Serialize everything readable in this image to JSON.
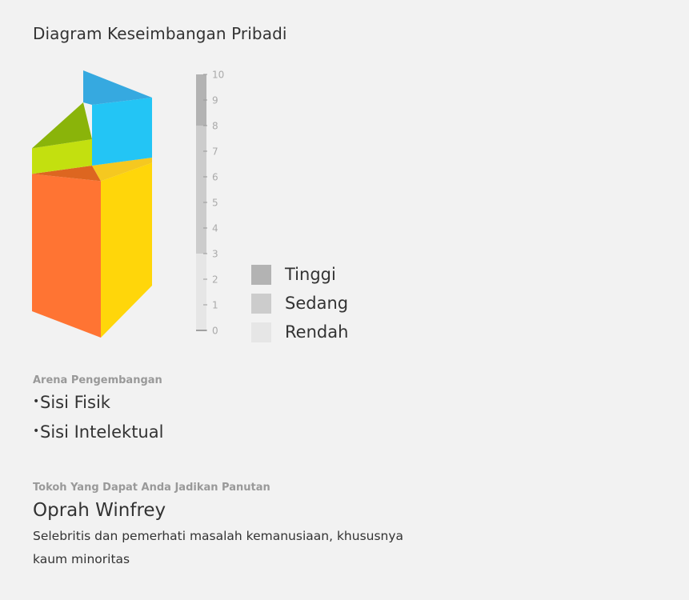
{
  "title": "Diagram Keseimbangan Pribadi",
  "chart_data": {
    "type": "prism",
    "title": "Diagram Keseimbangan Pribadi",
    "axis": {
      "min": 0,
      "max": 10,
      "ticks": [
        "0",
        "1",
        "2",
        "3",
        "4",
        "5",
        "6",
        "7",
        "8",
        "9",
        "10"
      ],
      "bands": [
        {
          "name": "Rendah",
          "from": 0,
          "to": 3,
          "color": "#e6e6e6"
        },
        {
          "name": "Sedang",
          "from": 3,
          "to": 8,
          "color": "#cccccc"
        },
        {
          "name": "Tinggi",
          "from": 8,
          "to": 10,
          "color": "#b3b3b3"
        }
      ]
    },
    "series": [
      {
        "front_color": "#ff7433",
        "top_color": "#dd6620",
        "value": 6.2
      },
      {
        "front_color": "#ffd60a",
        "top_color": "#f5c820",
        "value": 6.5
      },
      {
        "front_color": "#c3e00f",
        "top_color": "#8ab40a",
        "value": 7.6
      },
      {
        "front_color": "#23c5f5",
        "top_color": "#36a9e0",
        "value": 10
      }
    ]
  },
  "legend": [
    {
      "label": "Tinggi",
      "color": "#b3b3b3"
    },
    {
      "label": "Sedang",
      "color": "#cccccc"
    },
    {
      "label": "Rendah",
      "color": "#e6e6e6"
    }
  ],
  "arena": {
    "label": "Arena Pengembangan",
    "items": [
      "Sisi Fisik",
      "Sisi Intelektual"
    ]
  },
  "role_model": {
    "label": "Tokoh Yang Dapat Anda Jadikan Panutan",
    "name": "Oprah Winfrey",
    "description": "Selebritis dan pemerhati masalah kemanusiaan, khususnya kaum minoritas"
  }
}
